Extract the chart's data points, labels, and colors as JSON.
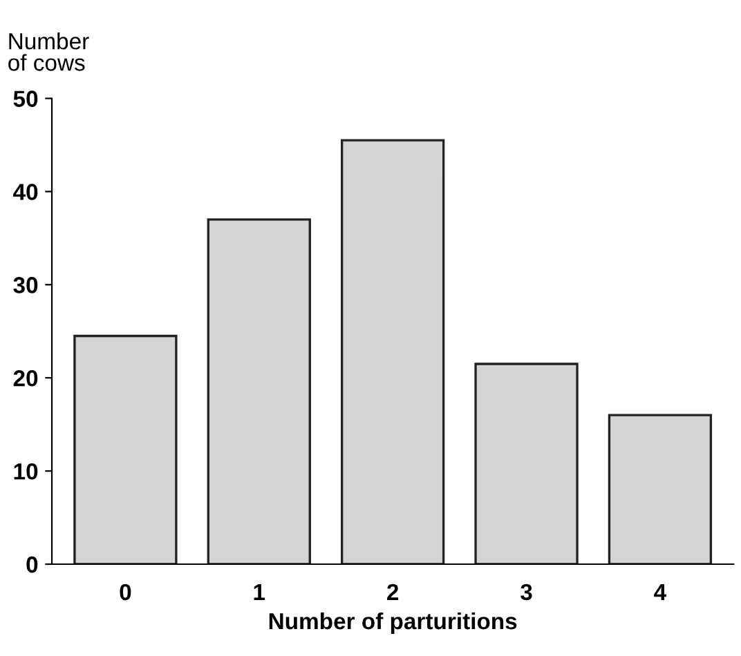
{
  "chart_data": {
    "type": "bar",
    "ylabel": "Number\nof cows",
    "xlabel": "Number of parturitions",
    "categories": [
      "0",
      "1",
      "2",
      "3",
      "4"
    ],
    "values": [
      24.5,
      37,
      45.5,
      21.5,
      16
    ],
    "color": "#d4d4d4",
    "ylim": [
      0,
      50
    ],
    "yticks": [
      0,
      10,
      20,
      30,
      40,
      50
    ],
    "grid": false,
    "legend": false
  }
}
